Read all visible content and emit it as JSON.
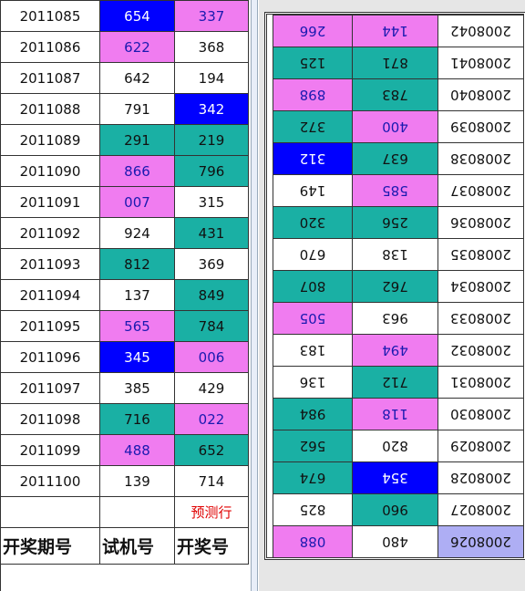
{
  "left_table": {
    "rows": [
      [
        "2011085",
        "654",
        "337"
      ],
      [
        "2011086",
        "622",
        "368"
      ],
      [
        "2011087",
        "642",
        "194"
      ],
      [
        "2011088",
        "791",
        "342"
      ],
      [
        "2011089",
        "291",
        "219"
      ],
      [
        "2011090",
        "866",
        "796"
      ],
      [
        "2011091",
        "007",
        "315"
      ],
      [
        "2011092",
        "924",
        "431"
      ],
      [
        "2011093",
        "812",
        "369"
      ],
      [
        "2011094",
        "137",
        "849"
      ],
      [
        "2011095",
        "565",
        "784"
      ],
      [
        "2011096",
        "345",
        "006"
      ],
      [
        "2011097",
        "385",
        "429"
      ],
      [
        "2011098",
        "716",
        "022"
      ],
      [
        "2011099",
        "488",
        "652"
      ],
      [
        "2011100",
        "139",
        "714"
      ]
    ],
    "fills": [
      [
        "#ffffff",
        "#0000ff",
        "#f07cf0"
      ],
      [
        "#ffffff",
        "#f07cf0",
        "#ffffff"
      ],
      [
        "#ffffff",
        "#ffffff",
        "#ffffff"
      ],
      [
        "#ffffff",
        "#ffffff",
        "#0000ff"
      ],
      [
        "#ffffff",
        "#1ab0a4",
        "#1ab0a4"
      ],
      [
        "#ffffff",
        "#f07cf0",
        "#1ab0a4"
      ],
      [
        "#ffffff",
        "#f07cf0",
        "#ffffff"
      ],
      [
        "#ffffff",
        "#ffffff",
        "#1ab0a4"
      ],
      [
        "#ffffff",
        "#1ab0a4",
        "#ffffff"
      ],
      [
        "#ffffff",
        "#ffffff",
        "#1ab0a4"
      ],
      [
        "#ffffff",
        "#f07cf0",
        "#1ab0a4"
      ],
      [
        "#ffffff",
        "#0000ff",
        "#f07cf0"
      ],
      [
        "#ffffff",
        "#ffffff",
        "#ffffff"
      ],
      [
        "#ffffff",
        "#1ab0a4",
        "#f07cf0"
      ],
      [
        "#ffffff",
        "#f07cf0",
        "#1ab0a4"
      ],
      [
        "#ffffff",
        "#ffffff",
        "#ffffff"
      ]
    ],
    "predict_label": "预测行",
    "header": [
      "开奖期号",
      "试机号",
      "开奖号"
    ]
  },
  "right_table": {
    "rotated": true,
    "rows": [
      [
        "2008026",
        "480",
        "088"
      ],
      [
        "2008027",
        "960",
        "825"
      ],
      [
        "2008028",
        "354",
        "674"
      ],
      [
        "2008029",
        "820",
        "562"
      ],
      [
        "2008030",
        "118",
        "984"
      ],
      [
        "2008031",
        "712",
        "136"
      ],
      [
        "2008032",
        "494",
        "183"
      ],
      [
        "2008033",
        "963",
        "505"
      ],
      [
        "2008034",
        "762",
        "807"
      ],
      [
        "2008035",
        "138",
        "670"
      ],
      [
        "2008036",
        "256",
        "320"
      ],
      [
        "2008037",
        "585",
        "149"
      ],
      [
        "2008038",
        "637",
        "312"
      ],
      [
        "2008039",
        "400",
        "372"
      ],
      [
        "2008040",
        "783",
        "898"
      ],
      [
        "2008041",
        "871",
        "125"
      ],
      [
        "2008042",
        "144",
        "266"
      ]
    ],
    "fills": [
      [
        "#aeaef4",
        "#ffffff",
        "#f07cf0"
      ],
      [
        "#ffffff",
        "#1ab0a4",
        "#ffffff"
      ],
      [
        "#ffffff",
        "#0000ff",
        "#1ab0a4"
      ],
      [
        "#ffffff",
        "#ffffff",
        "#1ab0a4"
      ],
      [
        "#ffffff",
        "#f07cf0",
        "#1ab0a4"
      ],
      [
        "#ffffff",
        "#1ab0a4",
        "#ffffff"
      ],
      [
        "#ffffff",
        "#f07cf0",
        "#ffffff"
      ],
      [
        "#ffffff",
        "#ffffff",
        "#f07cf0"
      ],
      [
        "#ffffff",
        "#1ab0a4",
        "#1ab0a4"
      ],
      [
        "#ffffff",
        "#ffffff",
        "#ffffff"
      ],
      [
        "#ffffff",
        "#1ab0a4",
        "#1ab0a4"
      ],
      [
        "#ffffff",
        "#f07cf0",
        "#ffffff"
      ],
      [
        "#ffffff",
        "#1ab0a4",
        "#0000ff"
      ],
      [
        "#ffffff",
        "#f07cf0",
        "#1ab0a4"
      ],
      [
        "#ffffff",
        "#1ab0a4",
        "#f07cf0"
      ],
      [
        "#ffffff",
        "#1ab0a4",
        "#1ab0a4"
      ],
      [
        "#ffffff",
        "#f07cf0",
        "#f07cf0"
      ]
    ]
  }
}
